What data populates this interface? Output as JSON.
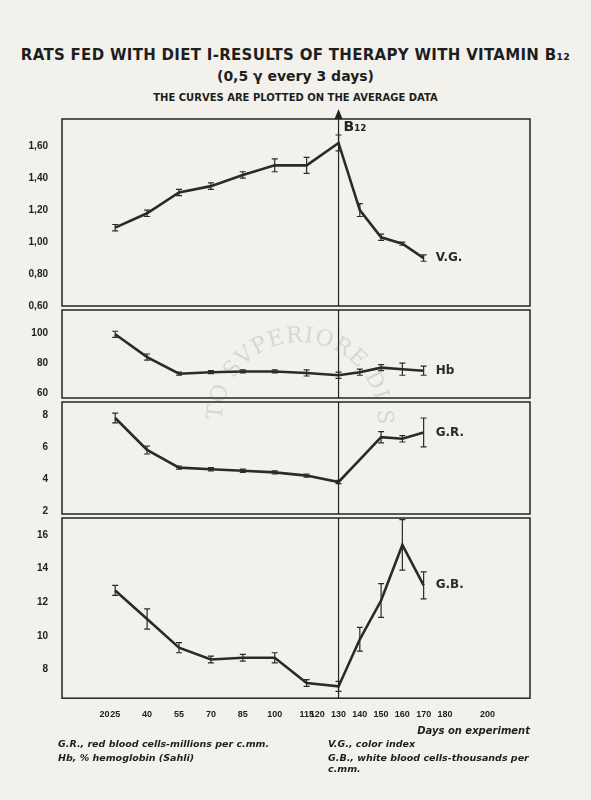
{
  "title": "RATS FED WITH DIET I-RESULTS OF THERAPY WITH VITAMIN B₁₂",
  "subtitle": "(0,5 γ every 3 days)",
  "note": "THE CURVES ARE PLOTTED ON THE AVERAGE DATA",
  "watermark": "ISTITVTO SVPERIORE DI SANITA",
  "footnotes": [
    "G.R., red blood cells-millions per c.mm.",
    "V.G., color index",
    "Hb, % hemoglobin (Sahli)",
    "G.B., white blood cells-thousands per c.mm."
  ],
  "chart_data": [
    {
      "type": "line",
      "grid": false,
      "tick_labels": "y",
      "x": [
        25,
        40,
        55,
        70,
        85,
        100,
        115,
        130,
        140,
        150,
        160,
        170
      ],
      "xlim": [
        0,
        220
      ],
      "ylim": [
        0.6,
        1.77
      ],
      "yticks": [
        {
          "value": 0.6,
          "label": "0,60"
        },
        {
          "value": 0.8,
          "label": "0,80"
        },
        {
          "value": 1.0,
          "label": "1,00"
        },
        {
          "value": 1.2,
          "label": "1,20"
        },
        {
          "value": 1.4,
          "label": "1,40"
        },
        {
          "value": 1.6,
          "label": "1,60"
        }
      ],
      "series": [
        {
          "name": "V.G.",
          "color": "#2a2a2a",
          "values": [
            1.09,
            1.18,
            1.31,
            1.35,
            1.42,
            1.48,
            1.48,
            1.62,
            1.2,
            1.03,
            0.99,
            0.9
          ],
          "errors": [
            0.02,
            0.02,
            0.02,
            0.02,
            0.02,
            0.04,
            0.05,
            0.05,
            0.04,
            0.02,
            0.01,
            0.02
          ]
        }
      ],
      "annotations": [
        {
          "x": 130,
          "label": "B₁₂"
        }
      ]
    },
    {
      "type": "line",
      "grid": false,
      "tick_labels": "y",
      "x": [
        25,
        40,
        55,
        70,
        85,
        100,
        115,
        130,
        140,
        150,
        160,
        170
      ],
      "xlim": [
        0,
        220
      ],
      "ylim": [
        57,
        115
      ],
      "yticks": [
        60,
        80,
        100
      ],
      "series": [
        {
          "name": "Hb",
          "color": "#2a2a2a",
          "values": [
            99,
            84,
            73,
            74,
            74.5,
            74.5,
            73.5,
            72,
            74,
            77,
            76,
            75
          ],
          "errors": [
            2,
            2,
            1,
            1,
            1,
            1,
            2,
            2,
            2,
            2,
            4,
            3
          ]
        }
      ],
      "annotations": [
        {
          "x": 130
        }
      ]
    },
    {
      "type": "line",
      "grid": false,
      "tick_labels": "y",
      "x": [
        25,
        40,
        55,
        70,
        85,
        100,
        115,
        130,
        140,
        150,
        160,
        170
      ],
      "xlim": [
        0,
        220
      ],
      "ylim": [
        1.8,
        8.8
      ],
      "yticks": [
        2,
        4,
        6,
        8
      ],
      "series": [
        {
          "name": "G.R.",
          "color": "#2a2a2a",
          "values": [
            7.8,
            5.8,
            4.7,
            4.6,
            4.5,
            4.4,
            4.2,
            3.8,
            5.2,
            6.6,
            6.5,
            6.9
          ],
          "errors": [
            0.3,
            0.25,
            0.1,
            0.1,
            0.1,
            0.1,
            0.1,
            0.1,
            null,
            0.35,
            0.2,
            0.9
          ]
        }
      ],
      "annotations": [
        {
          "x": 130
        }
      ]
    },
    {
      "type": "line",
      "grid": false,
      "x": [
        25,
        40,
        55,
        70,
        85,
        100,
        115,
        130,
        140,
        150,
        160,
        170
      ],
      "xlim": [
        0,
        220
      ],
      "xticks": [
        20,
        25,
        40,
        55,
        70,
        85,
        100,
        115,
        120,
        130,
        140,
        150,
        160,
        170,
        180,
        200
      ],
      "x_label": "Days on experiment",
      "ylim": [
        6.3,
        17
      ],
      "yticks": [
        8,
        10,
        12,
        14,
        16
      ],
      "series": [
        {
          "name": "G.B.",
          "color": "#2a2a2a",
          "values": [
            12.7,
            11.0,
            9.3,
            8.6,
            8.7,
            8.7,
            7.2,
            7.0,
            9.8,
            12.1,
            15.4,
            13.0
          ],
          "errors": [
            0.3,
            0.6,
            0.3,
            0.2,
            0.2,
            0.3,
            0.2,
            0.3,
            0.7,
            1.0,
            1.5,
            0.8
          ]
        }
      ],
      "annotations": [
        {
          "x": 130
        }
      ]
    }
  ]
}
